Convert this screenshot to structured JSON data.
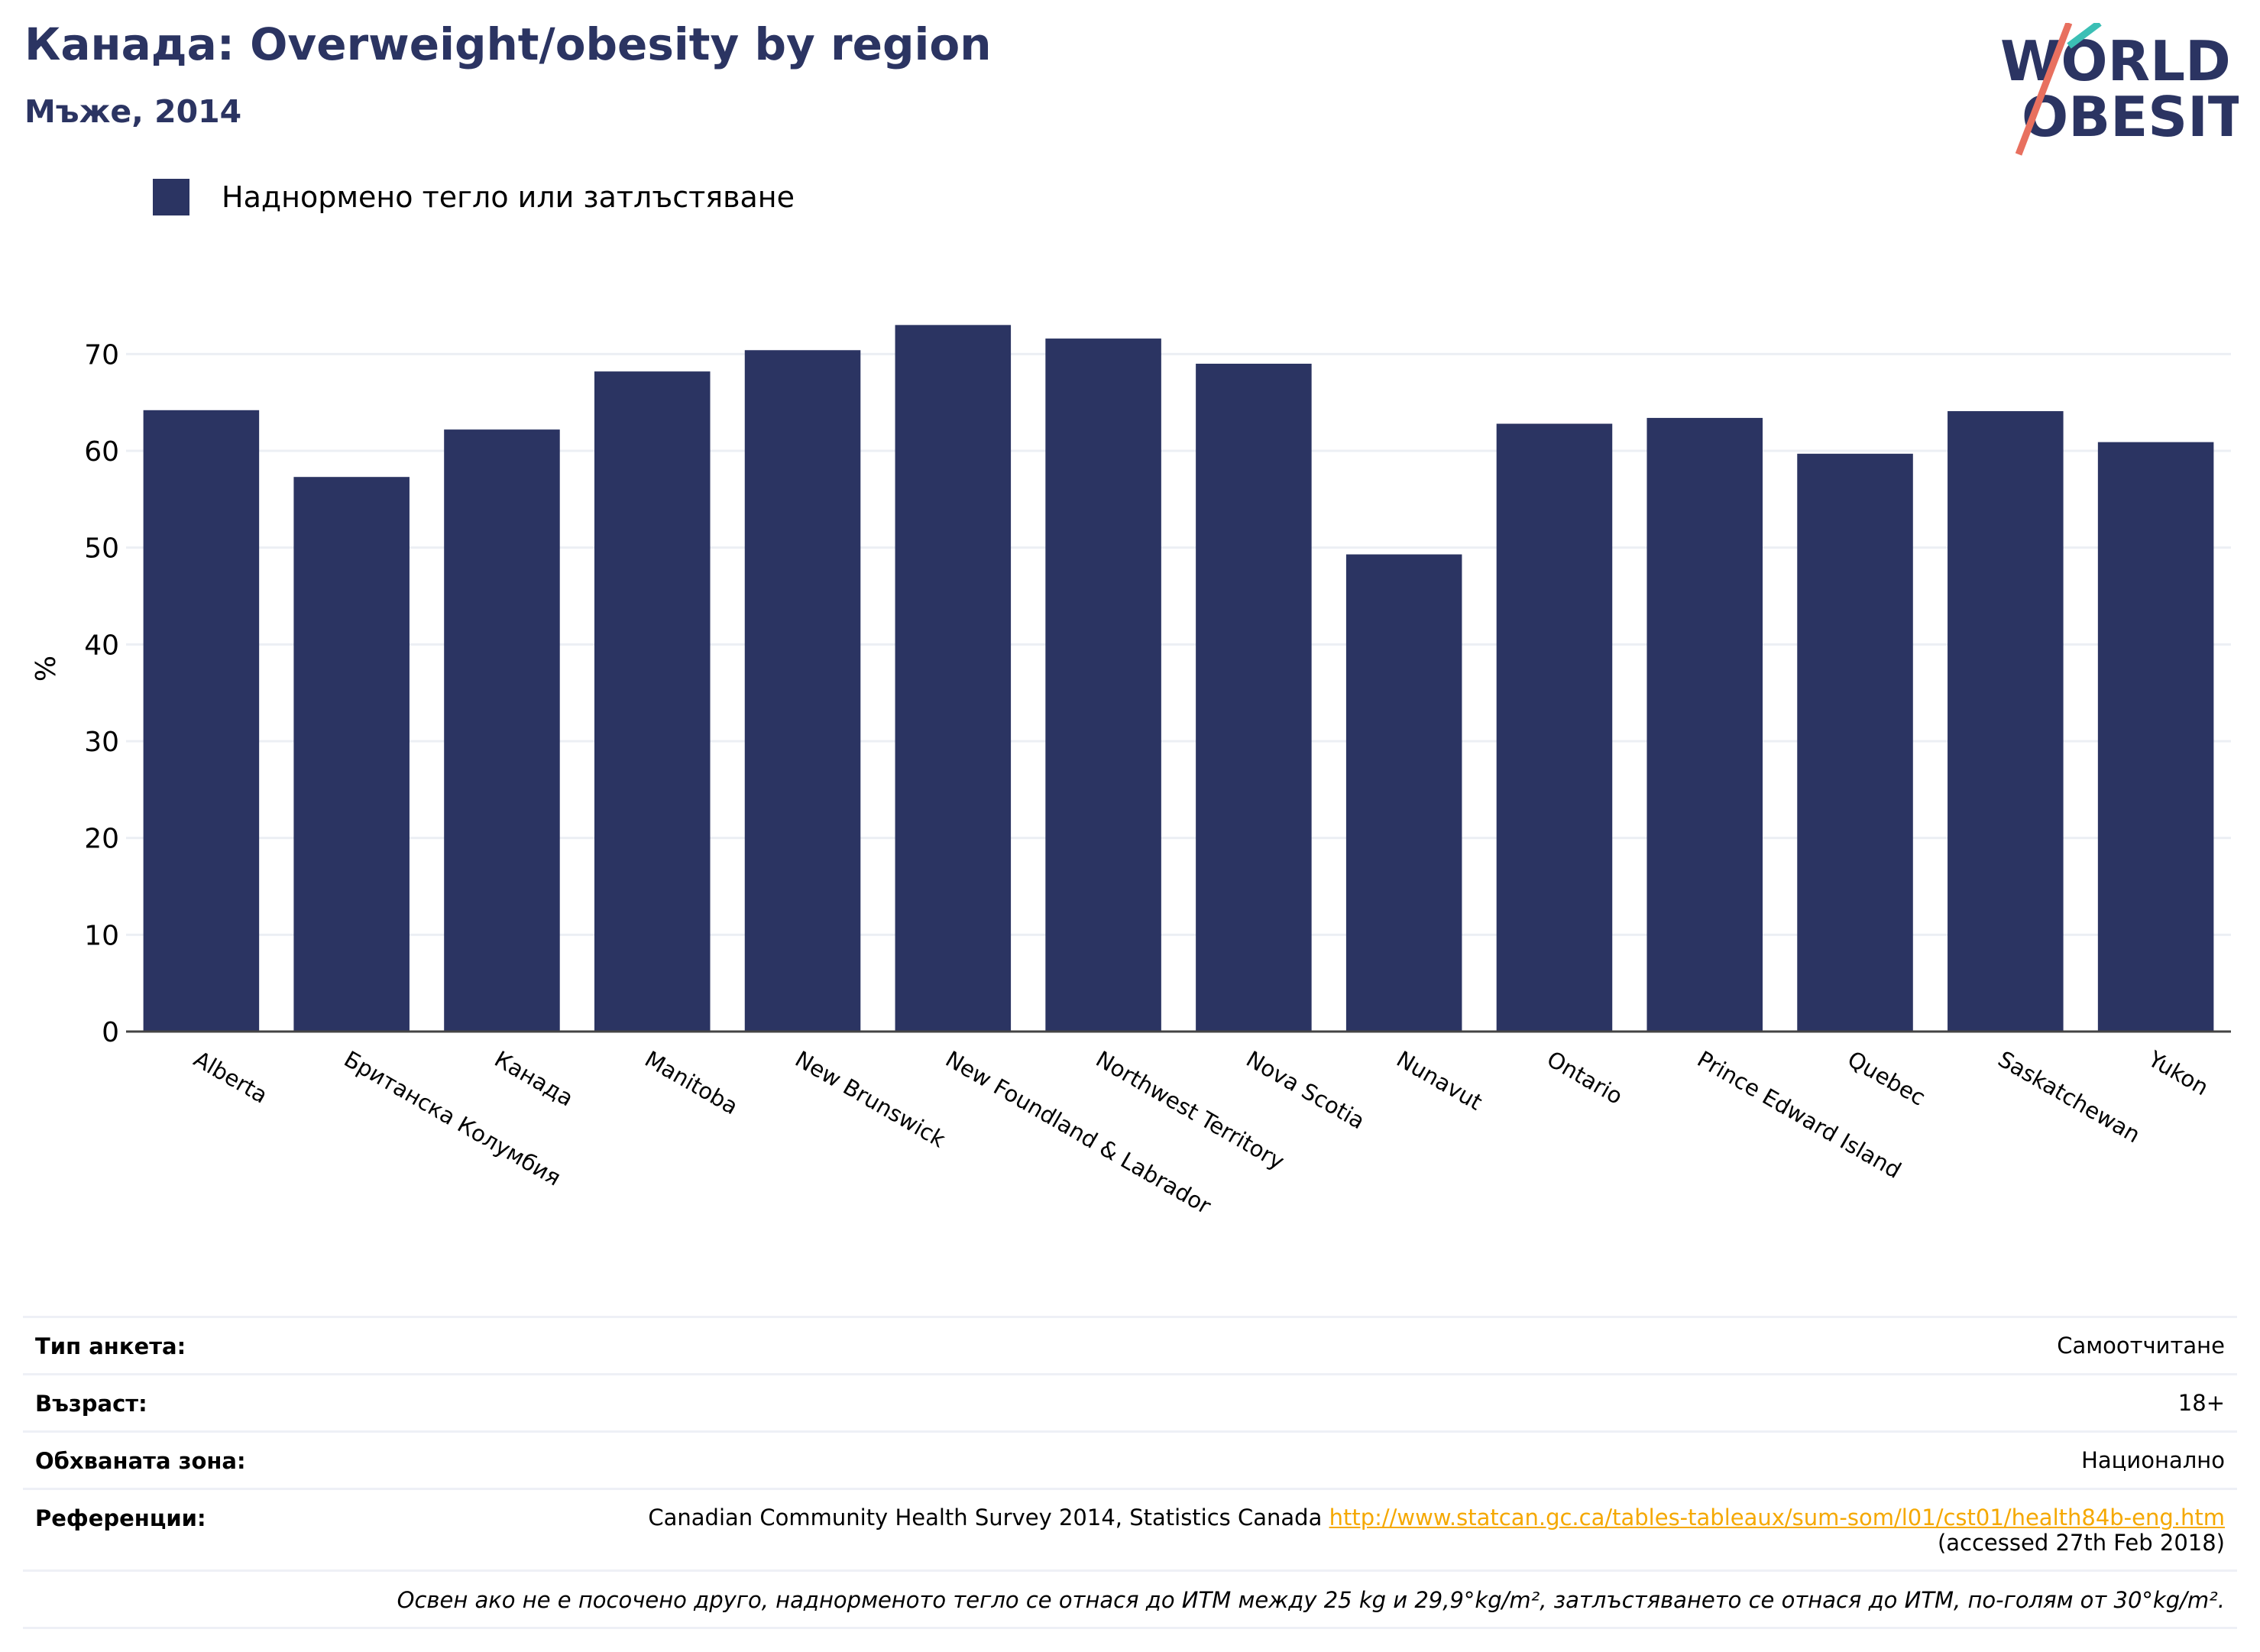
{
  "header": {
    "title": "Канада: Overweight/obesity by region",
    "subtitle": "Мъже, 2014"
  },
  "logo": {
    "line1": "WORLD",
    "line2": "OBESITY"
  },
  "colors": {
    "bar": "#2b3462",
    "title": "#2b3462",
    "link": "#f5a800",
    "logo_teal": "#3bbfb5",
    "logo_coral": "#e8705f",
    "grid": "#eceff4"
  },
  "chart_data": {
    "type": "bar",
    "ylabel": "%",
    "xlabel": "",
    "ylim": [
      0,
      75
    ],
    "yticks": [
      0,
      10,
      20,
      30,
      40,
      50,
      60,
      70
    ],
    "grid": true,
    "legend_position": "top-left",
    "categories": [
      "Alberta",
      "Британска Колумбия",
      "Канада",
      "Manitoba",
      "New Brunswick",
      "New Foundland & Labrador",
      "Northwest Territory",
      "Nova Scotia",
      "Nunavut",
      "Ontario",
      "Prince Edward Island",
      "Quebec",
      "Saskatchewan",
      "Yukon"
    ],
    "series": [
      {
        "name": "Наднормено тегло или затлъстяване",
        "values": [
          64.2,
          57.3,
          62.2,
          68.2,
          70.4,
          73.0,
          71.6,
          69.0,
          49.3,
          62.8,
          63.4,
          59.7,
          64.1,
          60.9
        ]
      }
    ]
  },
  "info": {
    "survey_type": {
      "label": "Тип анкета:",
      "value": "Самоотчитане"
    },
    "age": {
      "label": "Възраст:",
      "value": "18+"
    },
    "area": {
      "label": "Обхваната зона:",
      "value": "Национално"
    },
    "references": {
      "label": "Референции:",
      "source": "Canadian Community Health Survey 2014, Statistics Canada",
      "link": "http://www.statcan.gc.ca/tables-tableaux/sum-som/l01/cst01/health84b-eng.htm",
      "accessed": "(accessed 27th Feb 2018)"
    },
    "note": "Освен ако не е посочено друго, наднорменото тегло се отнася до ИТМ между 25 kg и 29,9°kg/m², затлъстяването се отнася до ИТМ, по-голям от 30°kg/m²."
  }
}
